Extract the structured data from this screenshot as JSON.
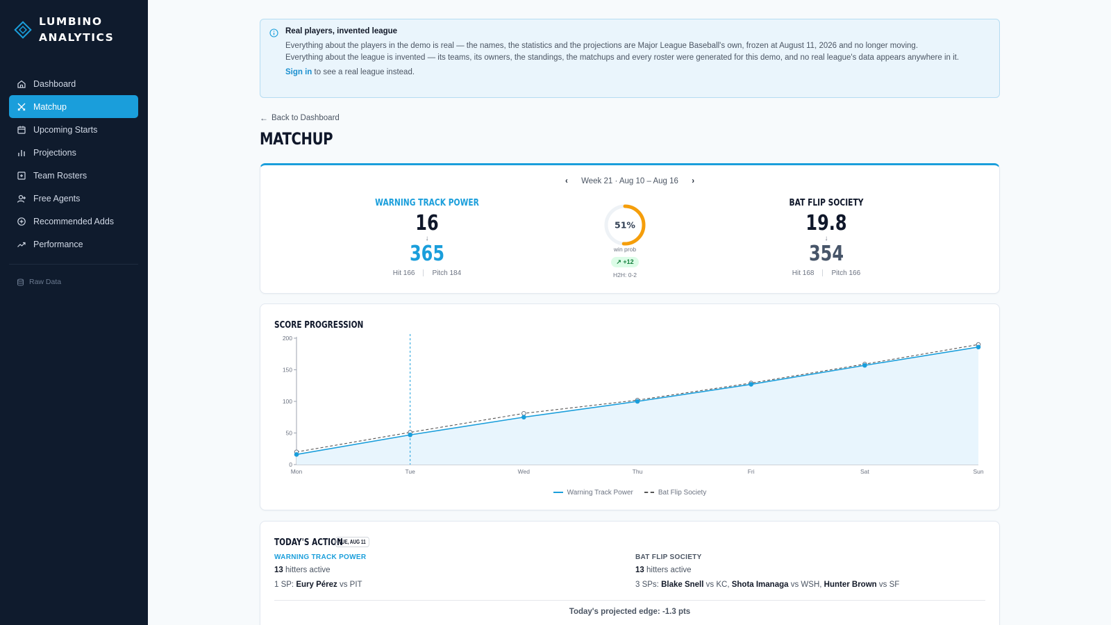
{
  "brand": {
    "line1": "LUMBINO",
    "line2": "ANALYTICS"
  },
  "nav": {
    "items": [
      {
        "label": "Dashboard",
        "icon": "home-icon",
        "active": false
      },
      {
        "label": "Matchup",
        "icon": "swords-icon",
        "active": true
      },
      {
        "label": "Upcoming Starts",
        "icon": "calendar-icon",
        "active": false
      },
      {
        "label": "Projections",
        "icon": "bar-chart-icon",
        "active": false
      },
      {
        "label": "Team Rosters",
        "icon": "roster-icon",
        "active": false
      },
      {
        "label": "Free Agents",
        "icon": "user-plus-icon",
        "active": false
      },
      {
        "label": "Recommended Adds",
        "icon": "plus-circle-icon",
        "active": false
      },
      {
        "label": "Performance",
        "icon": "trend-icon",
        "active": false
      }
    ],
    "raw_data": "Raw Data"
  },
  "banner": {
    "title": "Real players, invented league",
    "p1": "Everything about the players in the demo is real — the names, the statistics and the projections are Major League Baseball's own, frozen at August 11, 2026 and no longer moving.",
    "p2": "Everything about the league is invented — its teams, its owners, the standings, the matchups and every roster were generated for this demo, and no real league's data appears anywhere in it.",
    "sign_link": "Sign in",
    "sign_rest": " to see a real league instead."
  },
  "back_link": "Back to Dashboard",
  "page_title": "MATCHUP",
  "matchup": {
    "week": "Week 21 · Aug 10 – Aug 16",
    "left": {
      "name": "WARNING TRACK POWER",
      "score": "16",
      "projected": "365",
      "hit": "Hit 166",
      "pitch": "Pitch 184"
    },
    "right": {
      "name": "BAT FLIP SOCIETY",
      "score": "19.8",
      "projected": "354",
      "hit": "Hit 168",
      "pitch": "Pitch 166"
    },
    "win_prob": {
      "value": 51,
      "text": "51%",
      "label": "win prob",
      "change": "+12",
      "h2h": "H2H: 0-2"
    },
    "colors": {
      "accent": "#1a9edb",
      "ring": "#f59e0b"
    }
  },
  "chart_data": {
    "type": "line",
    "title": "SCORE PROGRESSION",
    "categories": [
      "Mon",
      "Tue",
      "Wed",
      "Thu",
      "Fri",
      "Sat",
      "Sun"
    ],
    "ylim": [
      0,
      200
    ],
    "yticks": [
      0,
      50,
      100,
      150,
      200
    ],
    "current_day": "Tue",
    "series": [
      {
        "name": "Warning Track Power",
        "values": [
          16,
          47,
          75,
          100,
          127,
          157,
          186
        ],
        "color": "#1a9edb",
        "style": "solid",
        "area": true
      },
      {
        "name": "Bat Flip Society",
        "values": [
          20,
          51,
          81,
          102,
          129,
          159,
          190
        ],
        "color": "#555555",
        "style": "dashed",
        "area": false
      }
    ],
    "legend": "bottom"
  },
  "todays_action": {
    "title": "TODAY'S ACTION",
    "date": "TUE, AUG 11",
    "left": {
      "team": "WARNING TRACK POWER",
      "hitters_count": "13",
      "hitters_text": " hitters active",
      "sp_prefix": "1 SP: ",
      "starts": [
        {
          "pitcher": "Eury Pérez",
          "opp": " vs PIT"
        }
      ]
    },
    "right": {
      "team": "BAT FLIP SOCIETY",
      "hitters_count": "13",
      "hitters_text": " hitters active",
      "sp_prefix": "3 SPs: ",
      "starts": [
        {
          "pitcher": "Blake Snell",
          "opp": " vs KC"
        },
        {
          "pitcher": "Shota Imanaga",
          "opp": " vs WSH"
        },
        {
          "pitcher": "Hunter Brown",
          "opp": " vs SF"
        }
      ]
    },
    "edge": "Today's projected edge: -1.3 pts"
  }
}
